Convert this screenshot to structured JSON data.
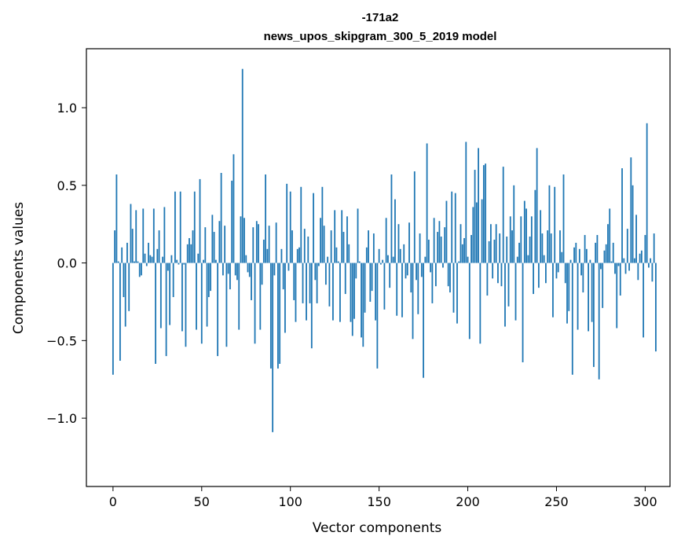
{
  "chart_data": {
    "type": "bar",
    "title_line1": "-171a2",
    "title_line2": "news_upos_skipgram_300_5_2019 model",
    "xlabel": "Vector components",
    "ylabel": "Components values",
    "xlim": [
      -15,
      314
    ],
    "ylim": [
      -1.44,
      1.38
    ],
    "x_ticks": [
      0,
      50,
      100,
      150,
      200,
      250,
      300
    ],
    "x_tick_labels": [
      "0",
      "50",
      "100",
      "150",
      "200",
      "250",
      "300"
    ],
    "y_ticks": [
      -1.0,
      -0.5,
      0.0,
      0.5,
      1.0
    ],
    "y_tick_labels": [
      "−1.0",
      "−0.5",
      "0.0",
      "0.5",
      "1.0"
    ],
    "bar_color": "#1f77b4",
    "grid": false,
    "values": [
      -0.72,
      0.21,
      0.57,
      0.01,
      -0.63,
      0.1,
      -0.22,
      -0.41,
      0.13,
      -0.31,
      0.38,
      0.22,
      0.01,
      0.34,
      0.01,
      -0.09,
      -0.08,
      0.35,
      0.06,
      -0.02,
      0.13,
      0.05,
      0.04,
      0.35,
      -0.65,
      0.09,
      0.21,
      -0.42,
      0.04,
      0.36,
      -0.6,
      -0.05,
      -0.4,
      0.05,
      -0.22,
      0.46,
      0.02,
      -0.01,
      0.46,
      -0.44,
      -0.01,
      -0.54,
      0.12,
      0.16,
      0.12,
      0.21,
      0.46,
      -0.43,
      0.06,
      0.54,
      -0.52,
      0.02,
      0.23,
      -0.41,
      -0.22,
      -0.18,
      0.31,
      0.2,
      0.02,
      -0.6,
      0.27,
      0.58,
      -0.08,
      0.24,
      -0.54,
      -0.07,
      -0.17,
      0.53,
      0.7,
      -0.08,
      -0.11,
      -0.43,
      0.3,
      1.25,
      0.29,
      0.05,
      -0.06,
      -0.09,
      -0.24,
      0.23,
      -0.52,
      0.27,
      0.25,
      -0.43,
      -0.14,
      0.15,
      0.57,
      0.09,
      0.24,
      -0.68,
      -1.09,
      -0.08,
      0.26,
      -0.68,
      -0.65,
      0.09,
      -0.17,
      -0.45,
      0.51,
      -0.05,
      0.46,
      0.21,
      -0.24,
      -0.38,
      0.09,
      0.1,
      0.49,
      -0.26,
      0.22,
      -0.37,
      0.17,
      -0.26,
      -0.55,
      0.45,
      -0.11,
      -0.26,
      -0.02,
      0.29,
      0.49,
      0.24,
      -0.14,
      0.04,
      -0.28,
      0.21,
      -0.37,
      0.34,
      0.1,
      0.01,
      -0.38,
      0.34,
      0.2,
      -0.2,
      0.3,
      0.12,
      -0.38,
      -0.47,
      -0.36,
      -0.1,
      0.35,
      0.01,
      -0.48,
      -0.54,
      -0.32,
      0.1,
      0.21,
      -0.25,
      -0.18,
      0.19,
      -0.37,
      -0.68,
      0.09,
      -0.01,
      0.02,
      -0.3,
      0.29,
      0.05,
      -0.16,
      0.57,
      0.04,
      0.41,
      -0.34,
      0.25,
      0.09,
      -0.35,
      0.12,
      -0.1,
      -0.08,
      0.26,
      -0.19,
      -0.49,
      0.59,
      -0.11,
      -0.33,
      0.19,
      -0.09,
      -0.74,
      0.04,
      0.77,
      0.15,
      -0.06,
      -0.26,
      0.29,
      -0.15,
      0.2,
      0.27,
      0.17,
      -0.03,
      0.23,
      0.4,
      -0.15,
      -0.19,
      0.46,
      -0.32,
      0.45,
      -0.39,
      0.01,
      0.25,
      0.12,
      0.16,
      0.78,
      0.04,
      -0.49,
      0.18,
      0.36,
      0.6,
      0.39,
      0.74,
      -0.52,
      0.41,
      0.63,
      0.64,
      -0.21,
      0.14,
      0.25,
      -0.1,
      0.15,
      0.25,
      -0.13,
      0.19,
      -0.15,
      0.62,
      -0.41,
      0.17,
      -0.28,
      0.3,
      0.21,
      0.5,
      -0.37,
      0.04,
      0.13,
      0.3,
      -0.64,
      0.4,
      0.35,
      0.05,
      0.17,
      0.3,
      -0.2,
      0.47,
      0.74,
      -0.16,
      0.34,
      0.19,
      0.05,
      -0.13,
      0.21,
      0.5,
      0.19,
      -0.35,
      0.49,
      -0.1,
      -0.06,
      0.21,
      0.07,
      0.57,
      -0.13,
      -0.39,
      -0.31,
      0.02,
      -0.72,
      0.1,
      0.13,
      -0.43,
      0.09,
      -0.08,
      -0.19,
      0.18,
      0.09,
      -0.44,
      0.02,
      -0.38,
      -0.67,
      0.13,
      0.18,
      -0.75,
      -0.04,
      -0.29,
      0.08,
      0.12,
      0.25,
      0.35,
      0.01,
      0.13,
      -0.07,
      -0.42,
      -0.02,
      -0.21,
      0.61,
      0.03,
      -0.07,
      0.22,
      -0.05,
      0.68,
      0.5,
      0.03,
      0.31,
      -0.11,
      0.06,
      0.08,
      -0.48,
      0.18,
      0.9,
      -0.03,
      0.03,
      -0.12,
      0.19,
      -0.57
    ]
  }
}
